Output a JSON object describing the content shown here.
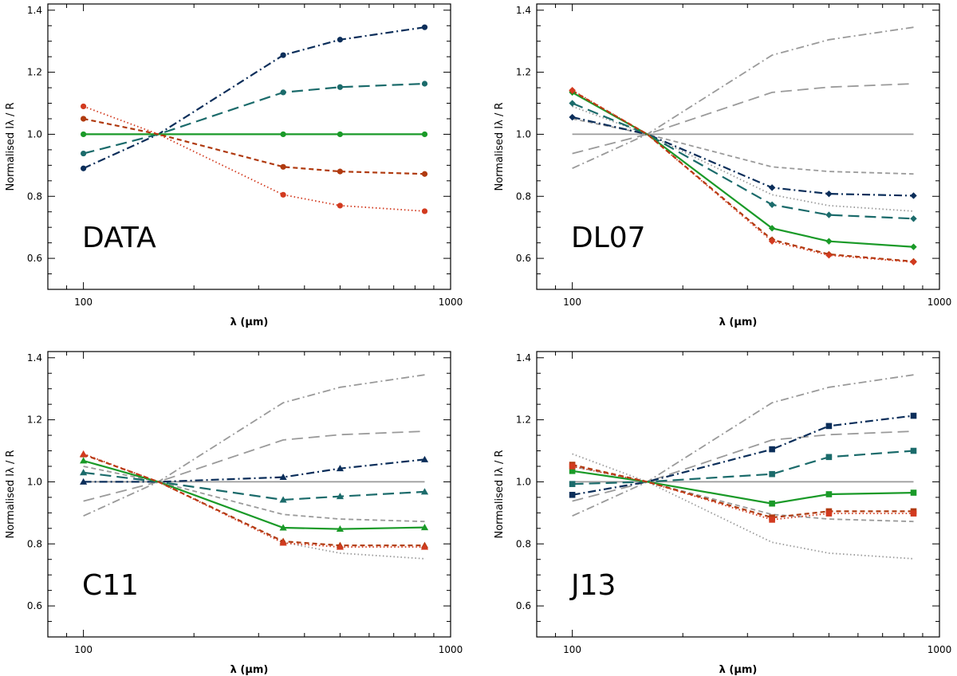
{
  "colors": {
    "dark_blue": "#0b2e5a",
    "teal": "#1b6b6b",
    "green": "#1a9a28",
    "brown": "#b03a0f",
    "red": "#d23a1f",
    "gray": "#9a9a9a",
    "axis": "#000000"
  },
  "chart_data": [
    {
      "type": "line",
      "panel_label": "DATA",
      "xlabel": "λ (μm)",
      "ylabel": "Normalised Iλ / R",
      "xscale": "log",
      "xlim": [
        80,
        1000
      ],
      "ylim": [
        0.5,
        1.42
      ],
      "xticks": [
        100,
        1000
      ],
      "yticks": [
        0.6,
        0.8,
        1.0,
        1.2,
        1.4
      ],
      "marker": "circle",
      "show_reference": false,
      "x": [
        100,
        160,
        350,
        500,
        850
      ],
      "series": [
        {
          "name": "dash-dot",
          "color_key": "dark_blue",
          "style": "dashdot",
          "values": [
            0.89,
            1.0,
            1.255,
            1.305,
            1.345
          ]
        },
        {
          "name": "long-dash",
          "color_key": "teal",
          "style": "longdash",
          "values": [
            0.938,
            1.0,
            1.135,
            1.152,
            1.163
          ]
        },
        {
          "name": "solid",
          "color_key": "green",
          "style": "solid",
          "values": [
            1.0,
            1.0,
            1.0,
            1.0,
            1.0
          ]
        },
        {
          "name": "short-dash",
          "color_key": "brown",
          "style": "dash",
          "values": [
            1.05,
            1.0,
            0.895,
            0.88,
            0.872
          ]
        },
        {
          "name": "dotted",
          "color_key": "red",
          "style": "dot",
          "values": [
            1.09,
            1.0,
            0.805,
            0.77,
            0.752
          ]
        }
      ]
    },
    {
      "type": "line",
      "panel_label": "DL07",
      "xlabel": "λ (μm)",
      "ylabel": "Normalised Iλ / R",
      "xscale": "log",
      "xlim": [
        80,
        1000
      ],
      "ylim": [
        0.5,
        1.42
      ],
      "xticks": [
        100,
        1000
      ],
      "yticks": [
        0.6,
        0.8,
        1.0,
        1.2,
        1.4
      ],
      "marker": "diamond",
      "show_reference": true,
      "x": [
        100,
        160,
        350,
        500,
        850
      ],
      "series": [
        {
          "name": "dash-dot",
          "color_key": "dark_blue",
          "style": "dashdot",
          "values": [
            1.055,
            1.0,
            0.828,
            0.808,
            0.802
          ]
        },
        {
          "name": "long-dash",
          "color_key": "teal",
          "style": "longdash",
          "values": [
            1.1,
            1.0,
            0.773,
            0.74,
            0.728
          ]
        },
        {
          "name": "solid",
          "color_key": "green",
          "style": "solid",
          "values": [
            1.135,
            1.0,
            0.697,
            0.655,
            0.637
          ]
        },
        {
          "name": "short-dash",
          "color_key": "brown",
          "style": "dash",
          "values": [
            1.14,
            1.0,
            0.66,
            0.613,
            0.59
          ]
        },
        {
          "name": "dotted",
          "color_key": "red",
          "style": "dot",
          "values": [
            1.142,
            1.0,
            0.655,
            0.61,
            0.588
          ]
        }
      ]
    },
    {
      "type": "line",
      "panel_label": "C11",
      "xlabel": "λ (μm)",
      "ylabel": "Normalised Iλ / R",
      "xscale": "log",
      "xlim": [
        80,
        1000
      ],
      "ylim": [
        0.5,
        1.42
      ],
      "xticks": [
        100,
        1000
      ],
      "yticks": [
        0.6,
        0.8,
        1.0,
        1.2,
        1.4
      ],
      "marker": "triangle",
      "show_reference": true,
      "x": [
        100,
        160,
        350,
        500,
        850
      ],
      "series": [
        {
          "name": "dash-dot",
          "color_key": "dark_blue",
          "style": "dashdot",
          "values": [
            1.0,
            1.0,
            1.015,
            1.043,
            1.072
          ]
        },
        {
          "name": "long-dash",
          "color_key": "teal",
          "style": "longdash",
          "values": [
            1.03,
            1.0,
            0.942,
            0.953,
            0.968
          ]
        },
        {
          "name": "solid",
          "color_key": "green",
          "style": "solid",
          "values": [
            1.068,
            1.0,
            0.852,
            0.848,
            0.853
          ]
        },
        {
          "name": "short-dash",
          "color_key": "brown",
          "style": "dash",
          "values": [
            1.088,
            1.0,
            0.808,
            0.795,
            0.795
          ]
        },
        {
          "name": "dotted",
          "color_key": "red",
          "style": "dot",
          "values": [
            1.09,
            1.0,
            0.803,
            0.79,
            0.79
          ]
        }
      ]
    },
    {
      "type": "line",
      "panel_label": "J13",
      "xlabel": "λ (μm)",
      "ylabel": "Normalised Iλ / R",
      "xscale": "log",
      "xlim": [
        80,
        1000
      ],
      "ylim": [
        0.5,
        1.42
      ],
      "xticks": [
        100,
        1000
      ],
      "yticks": [
        0.6,
        0.8,
        1.0,
        1.2,
        1.4
      ],
      "marker": "square",
      "show_reference": true,
      "x": [
        100,
        160,
        350,
        500,
        850
      ],
      "series": [
        {
          "name": "dash-dot",
          "color_key": "dark_blue",
          "style": "dashdot",
          "values": [
            0.958,
            1.0,
            1.105,
            1.18,
            1.213
          ]
        },
        {
          "name": "long-dash",
          "color_key": "teal",
          "style": "longdash",
          "values": [
            0.993,
            1.0,
            1.025,
            1.08,
            1.1
          ]
        },
        {
          "name": "solid",
          "color_key": "green",
          "style": "solid",
          "values": [
            1.035,
            1.0,
            0.93,
            0.96,
            0.965
          ]
        },
        {
          "name": "short-dash",
          "color_key": "brown",
          "style": "dash",
          "values": [
            1.055,
            1.0,
            0.885,
            0.905,
            0.905
          ]
        },
        {
          "name": "dotted",
          "color_key": "red",
          "style": "dot",
          "values": [
            1.05,
            1.0,
            0.878,
            0.898,
            0.898
          ]
        }
      ]
    }
  ]
}
